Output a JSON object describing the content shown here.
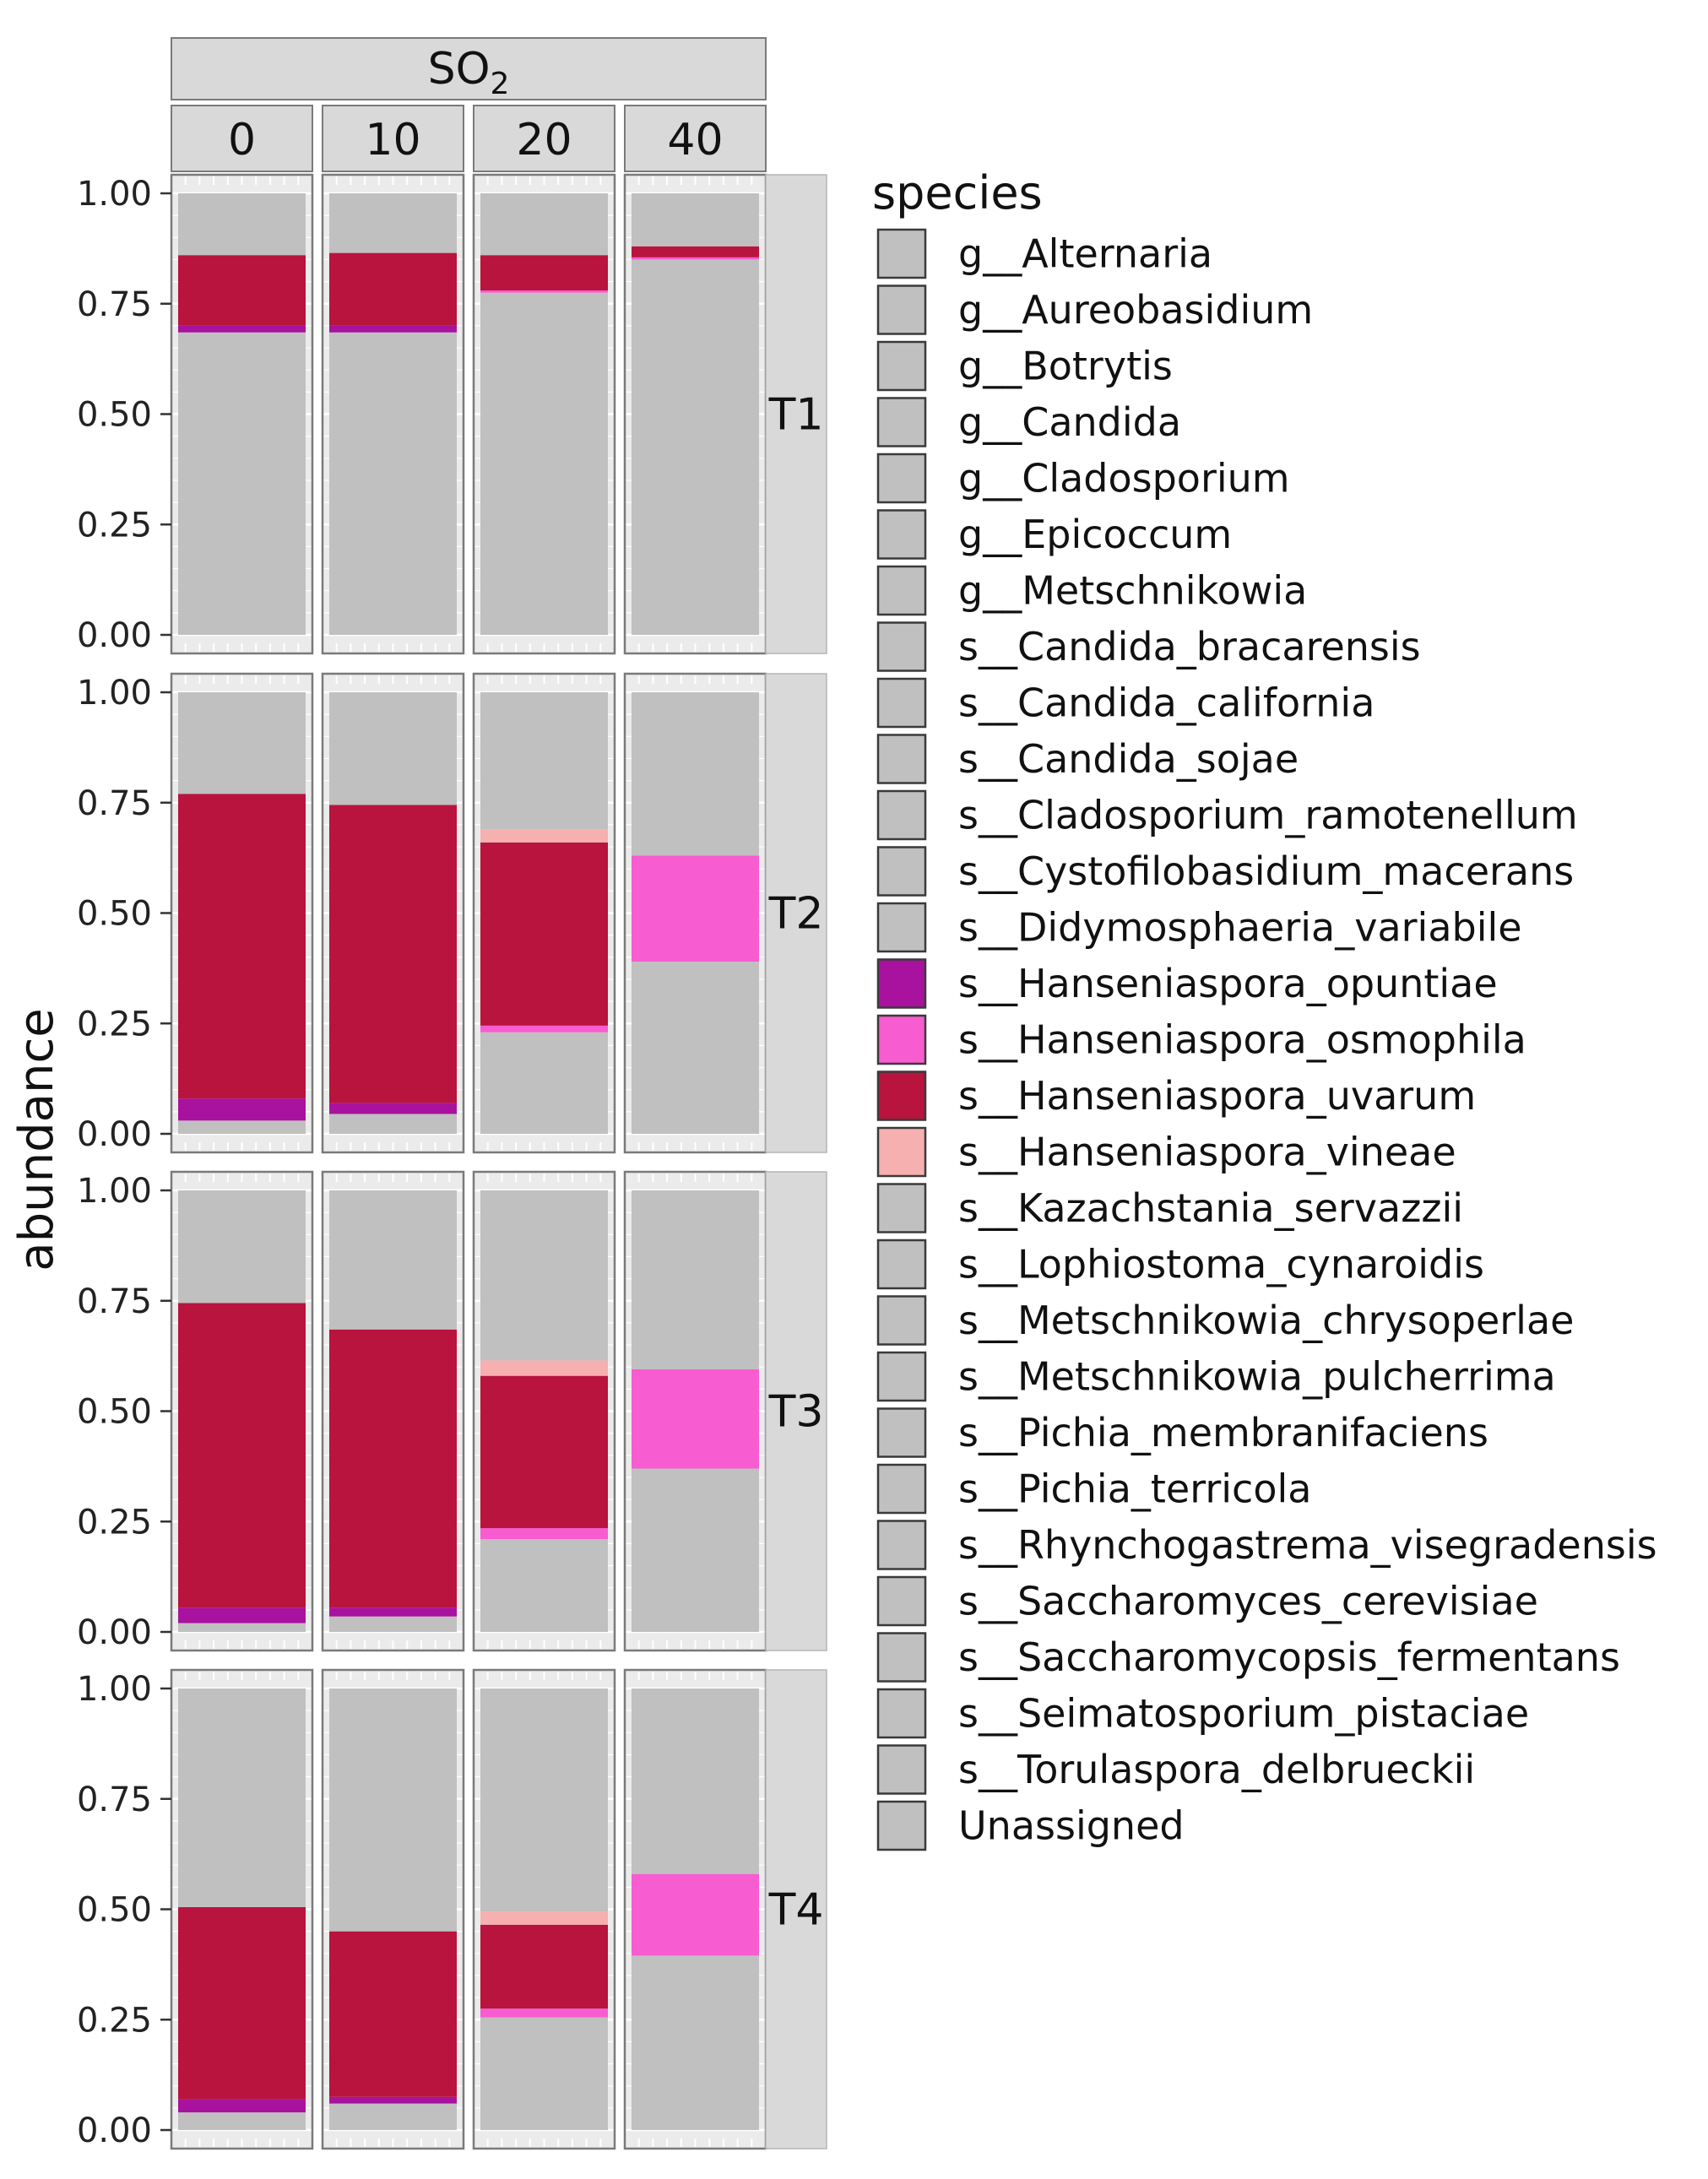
{
  "chart_data": {
    "type": "bar",
    "stacked": true,
    "facet_column_title": "SO",
    "facet_column_title_subscript": "2",
    "columns": [
      "0",
      "10",
      "20",
      "40"
    ],
    "rows": [
      "T1",
      "T2",
      "T3",
      "T4"
    ],
    "ylabel": "abundance",
    "xlabel": "",
    "ylim": [
      0,
      1
    ],
    "yticks": [
      "0.00",
      "0.25",
      "0.50",
      "0.75",
      "1.00"
    ],
    "legend_position": "right",
    "legend_title": "species",
    "grid": true,
    "species": [
      {
        "name": "g__Alternaria",
        "color": "#c0c0c0"
      },
      {
        "name": "g__Aureobasidium",
        "color": "#c0c0c0"
      },
      {
        "name": "g__Botrytis",
        "color": "#c0c0c0"
      },
      {
        "name": "g__Candida",
        "color": "#c0c0c0"
      },
      {
        "name": "g__Cladosporium",
        "color": "#c0c0c0"
      },
      {
        "name": "g__Epicoccum",
        "color": "#c0c0c0"
      },
      {
        "name": "g__Metschnikowia",
        "color": "#c0c0c0"
      },
      {
        "name": "s__Candida_bracarensis",
        "color": "#c0c0c0"
      },
      {
        "name": "s__Candida_california",
        "color": "#c0c0c0"
      },
      {
        "name": "s__Candida_sojae",
        "color": "#c0c0c0"
      },
      {
        "name": "s__Cladosporium_ramotenellum",
        "color": "#c0c0c0"
      },
      {
        "name": "s__Cystofilobasidium_macerans",
        "color": "#c0c0c0"
      },
      {
        "name": "s__Didymosphaeria_variabile",
        "color": "#c0c0c0"
      },
      {
        "name": "s__Hanseniaspora_opuntiae",
        "color": "#a8129e"
      },
      {
        "name": "s__Hanseniaspora_osmophila",
        "color": "#f75cd0"
      },
      {
        "name": "s__Hanseniaspora_uvarum",
        "color": "#b8143d"
      },
      {
        "name": "s__Hanseniaspora_vineae",
        "color": "#f6b0b0"
      },
      {
        "name": "s__Kazachstania_servazzii",
        "color": "#c0c0c0"
      },
      {
        "name": "s__Lophiostoma_cynaroidis",
        "color": "#c0c0c0"
      },
      {
        "name": "s__Metschnikowia_chrysoperlae",
        "color": "#c0c0c0"
      },
      {
        "name": "s__Metschnikowia_pulcherrima",
        "color": "#c0c0c0"
      },
      {
        "name": "s__Pichia_membranifaciens",
        "color": "#c0c0c0"
      },
      {
        "name": "s__Pichia_terricola",
        "color": "#c0c0c0"
      },
      {
        "name": "s__Rhynchogastrema_visegradensis",
        "color": "#c0c0c0"
      },
      {
        "name": "s__Saccharomyces_cerevisiae",
        "color": "#c0c0c0"
      },
      {
        "name": "s__Saccharomycopsis_fermentans",
        "color": "#c0c0c0"
      },
      {
        "name": "s__Seimatosporium_pistaciae",
        "color": "#c0c0c0"
      },
      {
        "name": "s__Torulaspora_delbrueckii",
        "color": "#c0c0c0"
      },
      {
        "name": "Unassigned",
        "color": "#c0c0c0"
      }
    ],
    "panels": [
      {
        "row": "T1",
        "column": "0",
        "segments": [
          {
            "species": "other",
            "from": 0.0,
            "to": 0.685
          },
          {
            "species": "s__Hanseniaspora_opuntiae",
            "from": 0.685,
            "to": 0.7
          },
          {
            "species": "s__Hanseniaspora_uvarum",
            "from": 0.7,
            "to": 0.86
          },
          {
            "species": "other",
            "from": 0.86,
            "to": 1.0
          }
        ]
      },
      {
        "row": "T1",
        "column": "10",
        "segments": [
          {
            "species": "other",
            "from": 0.0,
            "to": 0.685
          },
          {
            "species": "s__Hanseniaspora_opuntiae",
            "from": 0.685,
            "to": 0.7
          },
          {
            "species": "s__Hanseniaspora_uvarum",
            "from": 0.7,
            "to": 0.865
          },
          {
            "species": "other",
            "from": 0.865,
            "to": 1.0
          }
        ]
      },
      {
        "row": "T1",
        "column": "20",
        "segments": [
          {
            "species": "other",
            "from": 0.0,
            "to": 0.775
          },
          {
            "species": "s__Hanseniaspora_osmophila",
            "from": 0.775,
            "to": 0.78
          },
          {
            "species": "s__Hanseniaspora_uvarum",
            "from": 0.78,
            "to": 0.86
          },
          {
            "species": "other",
            "from": 0.86,
            "to": 1.0
          }
        ]
      },
      {
        "row": "T1",
        "column": "40",
        "segments": [
          {
            "species": "other",
            "from": 0.0,
            "to": 0.85
          },
          {
            "species": "s__Hanseniaspora_osmophila",
            "from": 0.85,
            "to": 0.855
          },
          {
            "species": "s__Hanseniaspora_uvarum",
            "from": 0.855,
            "to": 0.88
          },
          {
            "species": "other",
            "from": 0.88,
            "to": 1.0
          }
        ]
      },
      {
        "row": "T2",
        "column": "0",
        "segments": [
          {
            "species": "other",
            "from": 0.0,
            "to": 0.03
          },
          {
            "species": "s__Hanseniaspora_opuntiae",
            "from": 0.03,
            "to": 0.08
          },
          {
            "species": "s__Hanseniaspora_uvarum",
            "from": 0.08,
            "to": 0.77
          },
          {
            "species": "other",
            "from": 0.77,
            "to": 1.0
          }
        ]
      },
      {
        "row": "T2",
        "column": "10",
        "segments": [
          {
            "species": "other",
            "from": 0.0,
            "to": 0.045
          },
          {
            "species": "s__Hanseniaspora_opuntiae",
            "from": 0.045,
            "to": 0.07
          },
          {
            "species": "s__Hanseniaspora_uvarum",
            "from": 0.07,
            "to": 0.745
          },
          {
            "species": "other",
            "from": 0.745,
            "to": 1.0
          }
        ]
      },
      {
        "row": "T2",
        "column": "20",
        "segments": [
          {
            "species": "other",
            "from": 0.0,
            "to": 0.23
          },
          {
            "species": "s__Hanseniaspora_osmophila",
            "from": 0.23,
            "to": 0.245
          },
          {
            "species": "s__Hanseniaspora_uvarum",
            "from": 0.245,
            "to": 0.66
          },
          {
            "species": "s__Hanseniaspora_vineae",
            "from": 0.66,
            "to": 0.69
          },
          {
            "species": "other",
            "from": 0.69,
            "to": 1.0
          }
        ]
      },
      {
        "row": "T2",
        "column": "40",
        "segments": [
          {
            "species": "other",
            "from": 0.0,
            "to": 0.39
          },
          {
            "species": "s__Hanseniaspora_osmophila",
            "from": 0.39,
            "to": 0.63
          },
          {
            "species": "other",
            "from": 0.63,
            "to": 1.0
          }
        ]
      },
      {
        "row": "T3",
        "column": "0",
        "segments": [
          {
            "species": "other",
            "from": 0.0,
            "to": 0.02
          },
          {
            "species": "s__Hanseniaspora_opuntiae",
            "from": 0.02,
            "to": 0.055
          },
          {
            "species": "s__Hanseniaspora_uvarum",
            "from": 0.055,
            "to": 0.745
          },
          {
            "species": "other",
            "from": 0.745,
            "to": 1.0
          }
        ]
      },
      {
        "row": "T3",
        "column": "10",
        "segments": [
          {
            "species": "other",
            "from": 0.0,
            "to": 0.035
          },
          {
            "species": "s__Hanseniaspora_opuntiae",
            "from": 0.035,
            "to": 0.055
          },
          {
            "species": "s__Hanseniaspora_uvarum",
            "from": 0.055,
            "to": 0.685
          },
          {
            "species": "other",
            "from": 0.685,
            "to": 1.0
          }
        ]
      },
      {
        "row": "T3",
        "column": "20",
        "segments": [
          {
            "species": "other",
            "from": 0.0,
            "to": 0.21
          },
          {
            "species": "s__Hanseniaspora_osmophila",
            "from": 0.21,
            "to": 0.235
          },
          {
            "species": "s__Hanseniaspora_uvarum",
            "from": 0.235,
            "to": 0.58
          },
          {
            "species": "s__Hanseniaspora_vineae",
            "from": 0.58,
            "to": 0.615
          },
          {
            "species": "other",
            "from": 0.615,
            "to": 1.0
          }
        ]
      },
      {
        "row": "T3",
        "column": "40",
        "segments": [
          {
            "species": "other",
            "from": 0.0,
            "to": 0.37
          },
          {
            "species": "s__Hanseniaspora_osmophila",
            "from": 0.37,
            "to": 0.595
          },
          {
            "species": "other",
            "from": 0.595,
            "to": 1.0
          }
        ]
      },
      {
        "row": "T4",
        "column": "0",
        "segments": [
          {
            "species": "other",
            "from": 0.0,
            "to": 0.04
          },
          {
            "species": "s__Hanseniaspora_opuntiae",
            "from": 0.04,
            "to": 0.07
          },
          {
            "species": "s__Hanseniaspora_uvarum",
            "from": 0.07,
            "to": 0.505
          },
          {
            "species": "other",
            "from": 0.505,
            "to": 1.0
          }
        ]
      },
      {
        "row": "T4",
        "column": "10",
        "segments": [
          {
            "species": "other",
            "from": 0.0,
            "to": 0.06
          },
          {
            "species": "s__Hanseniaspora_opuntiae",
            "from": 0.06,
            "to": 0.075
          },
          {
            "species": "s__Hanseniaspora_uvarum",
            "from": 0.075,
            "to": 0.45
          },
          {
            "species": "other",
            "from": 0.45,
            "to": 1.0
          }
        ]
      },
      {
        "row": "T4",
        "column": "20",
        "segments": [
          {
            "species": "other",
            "from": 0.0,
            "to": 0.255
          },
          {
            "species": "s__Hanseniaspora_osmophila",
            "from": 0.255,
            "to": 0.275
          },
          {
            "species": "s__Hanseniaspora_uvarum",
            "from": 0.275,
            "to": 0.465
          },
          {
            "species": "s__Hanseniaspora_vineae",
            "from": 0.465,
            "to": 0.495
          },
          {
            "species": "other",
            "from": 0.495,
            "to": 1.0
          }
        ]
      },
      {
        "row": "T4",
        "column": "40",
        "segments": [
          {
            "species": "other",
            "from": 0.0,
            "to": 0.395
          },
          {
            "species": "s__Hanseniaspora_osmophila",
            "from": 0.395,
            "to": 0.58
          },
          {
            "species": "other",
            "from": 0.58,
            "to": 1.0
          }
        ]
      }
    ]
  }
}
